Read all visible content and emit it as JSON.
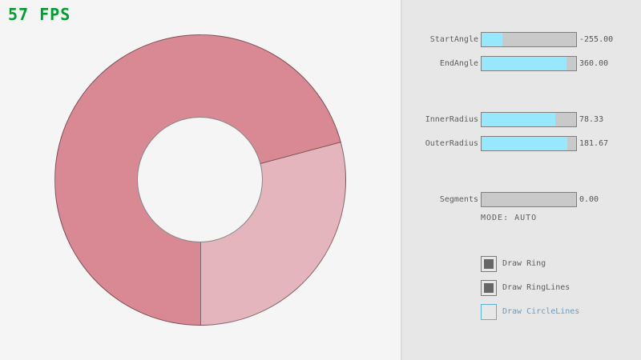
{
  "fps": {
    "label": "57 FPS",
    "color": "#009E2F"
  },
  "ring": {
    "color_dark": "#D98994",
    "color_light": "#E4B5BC",
    "color_hole": "#F5F5F5",
    "light_sector_start_deg": 75,
    "light_sector_end_deg": 180
  },
  "panel": {
    "sliders": [
      {
        "label": "StartAngle",
        "value": "-255.00",
        "fill_pct": 21.7
      },
      {
        "label": "EndAngle",
        "value": "360.00",
        "fill_pct": 90.0
      },
      {
        "label": "InnerRadius",
        "value": "78.33",
        "fill_pct": 78.3
      },
      {
        "label": "OuterRadius",
        "value": "181.67",
        "fill_pct": 90.8
      },
      {
        "label": "Segments",
        "value": "0.00",
        "fill_pct": 0
      }
    ],
    "mode_label": "MODE: AUTO",
    "checkboxes": [
      {
        "label": "Draw Ring",
        "checked": true,
        "highlighted": false
      },
      {
        "label": "Draw RingLines",
        "checked": true,
        "highlighted": false
      },
      {
        "label": "Draw CircleLines",
        "checked": false,
        "highlighted": true
      }
    ],
    "colors": {
      "slider_fill": "#97E8FF",
      "focus_border": "#5BB2D9",
      "focus_text": "#6C9BBC"
    }
  }
}
